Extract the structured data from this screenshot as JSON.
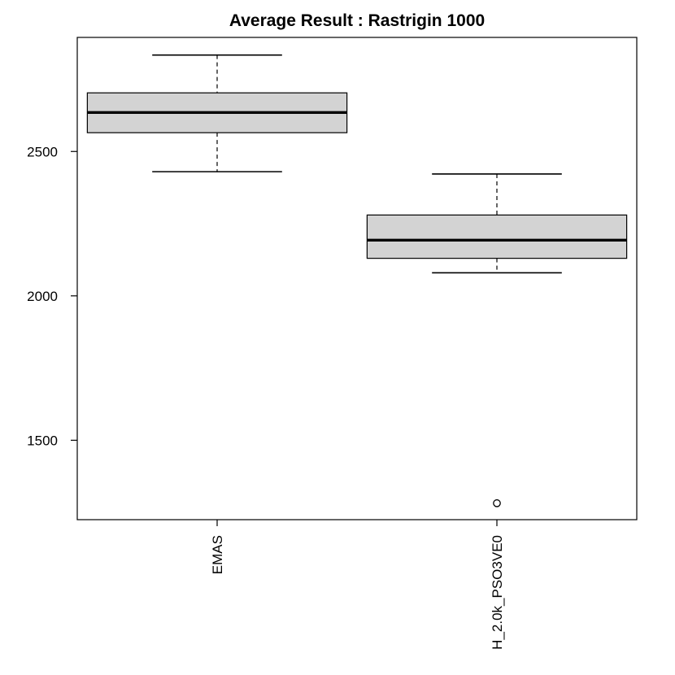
{
  "chart_data": {
    "type": "boxplot",
    "title": "Average Result : Rastrigin 1000",
    "xlabel": "",
    "ylabel": "",
    "ylim": [
      1225,
      2895
    ],
    "yticks": [
      1500,
      2000,
      2500
    ],
    "y_tick_labels": [
      "1500",
      "2000",
      "2500"
    ],
    "grid": false,
    "box_fill": "#d3d3d3",
    "categories": [
      "EMAS",
      "H_2.0k_PSO3VE0"
    ],
    "boxes": [
      {
        "name": "EMAS",
        "whisker_low": 2430,
        "q1": 2565,
        "median": 2635,
        "q3": 2703,
        "whisker_high": 2834,
        "outliers": []
      },
      {
        "name": "H_2.0k_PSO3VE0",
        "whisker_low": 2080,
        "q1": 2130,
        "median": 2193,
        "q3": 2280,
        "whisker_high": 2422,
        "outliers": [
          1282
        ]
      }
    ]
  }
}
